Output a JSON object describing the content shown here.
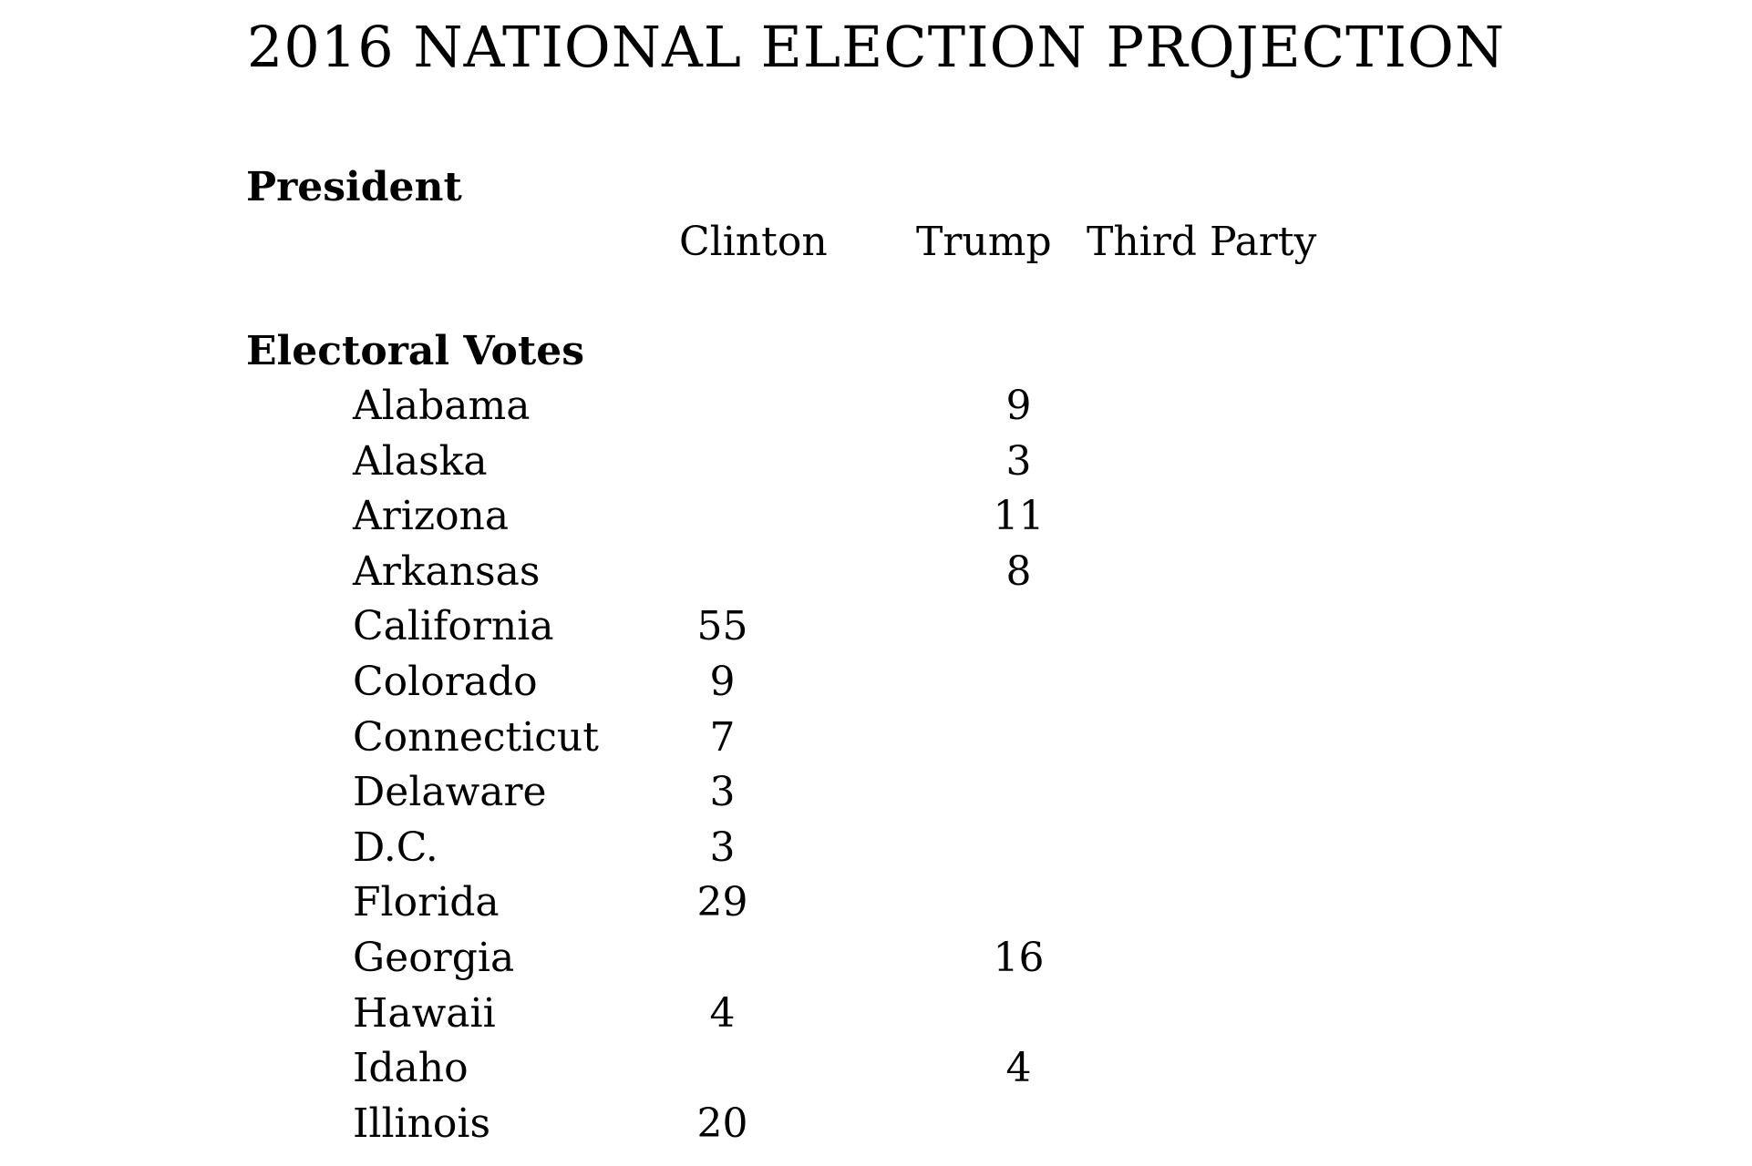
{
  "document": {
    "title": "2016 NATIONAL ELECTION PROJECTION",
    "sections": {
      "president": "President",
      "electoral_votes": "Electoral Votes"
    },
    "columns": {
      "clinton": "Clinton",
      "trump": "Trump",
      "third_party": "Third Party"
    },
    "rows": [
      {
        "state": "Alabama",
        "clinton": "",
        "trump": "9",
        "third_party": ""
      },
      {
        "state": "Alaska",
        "clinton": "",
        "trump": "3",
        "third_party": ""
      },
      {
        "state": "Arizona",
        "clinton": "",
        "trump": "11",
        "third_party": ""
      },
      {
        "state": "Arkansas",
        "clinton": "",
        "trump": "8",
        "third_party": ""
      },
      {
        "state": "California",
        "clinton": "55",
        "trump": "",
        "third_party": ""
      },
      {
        "state": "Colorado",
        "clinton": "9",
        "trump": "",
        "third_party": ""
      },
      {
        "state": "Connecticut",
        "clinton": "7",
        "trump": "",
        "third_party": ""
      },
      {
        "state": "Delaware",
        "clinton": "3",
        "trump": "",
        "third_party": ""
      },
      {
        "state": "D.C.",
        "clinton": "3",
        "trump": "",
        "third_party": ""
      },
      {
        "state": "Florida",
        "clinton": "29",
        "trump": "",
        "third_party": ""
      },
      {
        "state": "Georgia",
        "clinton": "",
        "trump": "16",
        "third_party": ""
      },
      {
        "state": "Hawaii",
        "clinton": "4",
        "trump": "",
        "third_party": ""
      },
      {
        "state": "Idaho",
        "clinton": "",
        "trump": "4",
        "third_party": ""
      },
      {
        "state": "Illinois",
        "clinton": "20",
        "trump": "",
        "third_party": ""
      }
    ]
  }
}
